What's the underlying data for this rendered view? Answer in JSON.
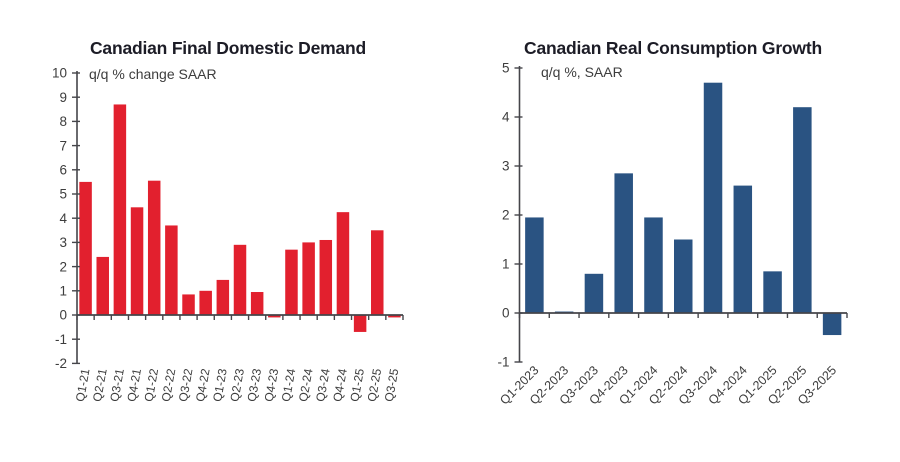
{
  "page": {
    "background": "#ffffff"
  },
  "colors": {
    "axis": "#45454a",
    "text": "#3d3d3d",
    "title": "#1c1c26"
  },
  "chart_data": [
    {
      "type": "bar",
      "title": "Canadian Final Domestic Demand",
      "subtitle": "q/q % change SAAR",
      "categories": [
        "Q1-21",
        "Q2-21",
        "Q3-21",
        "Q4-21",
        "Q1-22",
        "Q2-22",
        "Q3-22",
        "Q4-22",
        "Q1-23",
        "Q2-23",
        "Q3-23",
        "Q4-23",
        "Q1-24",
        "Q2-24",
        "Q3-24",
        "Q4-24",
        "Q1-25",
        "Q2-25",
        "Q3-25"
      ],
      "values": [
        5.5,
        2.4,
        8.7,
        4.45,
        5.55,
        3.7,
        0.85,
        1.0,
        1.45,
        2.9,
        0.95,
        -0.1,
        2.7,
        3.0,
        3.1,
        4.25,
        -0.7,
        3.5,
        -0.1
      ],
      "bar_color": "#e2202e",
      "ylim": [
        -2,
        10
      ],
      "yticks": [
        10,
        9,
        8,
        7,
        6,
        5,
        4,
        3,
        2,
        1,
        0,
        -1,
        -2
      ],
      "grid": false,
      "legend_position": "none",
      "xlabel_rotation_deg": 90
    },
    {
      "type": "bar",
      "title": "Canadian Real Consumption Growth",
      "subtitle": "q/q %, SAAR",
      "categories": [
        "Q1-2023",
        "Q2-2023",
        "Q3-2023",
        "Q4-2023",
        "Q1-2024",
        "Q2-2024",
        "Q3-2024",
        "Q4-2024",
        "Q1-2025",
        "Q2-2025",
        "Q3-2025"
      ],
      "values": [
        1.95,
        0.03,
        0.8,
        2.85,
        1.95,
        1.5,
        4.7,
        2.6,
        0.85,
        4.2,
        -0.45
      ],
      "bar_color": "#2a5382",
      "ylim": [
        -1,
        5
      ],
      "yticks": [
        5,
        4,
        3,
        2,
        1,
        0,
        -1
      ],
      "grid": false,
      "legend_position": "none",
      "xlabel_rotation_deg": 45
    }
  ]
}
